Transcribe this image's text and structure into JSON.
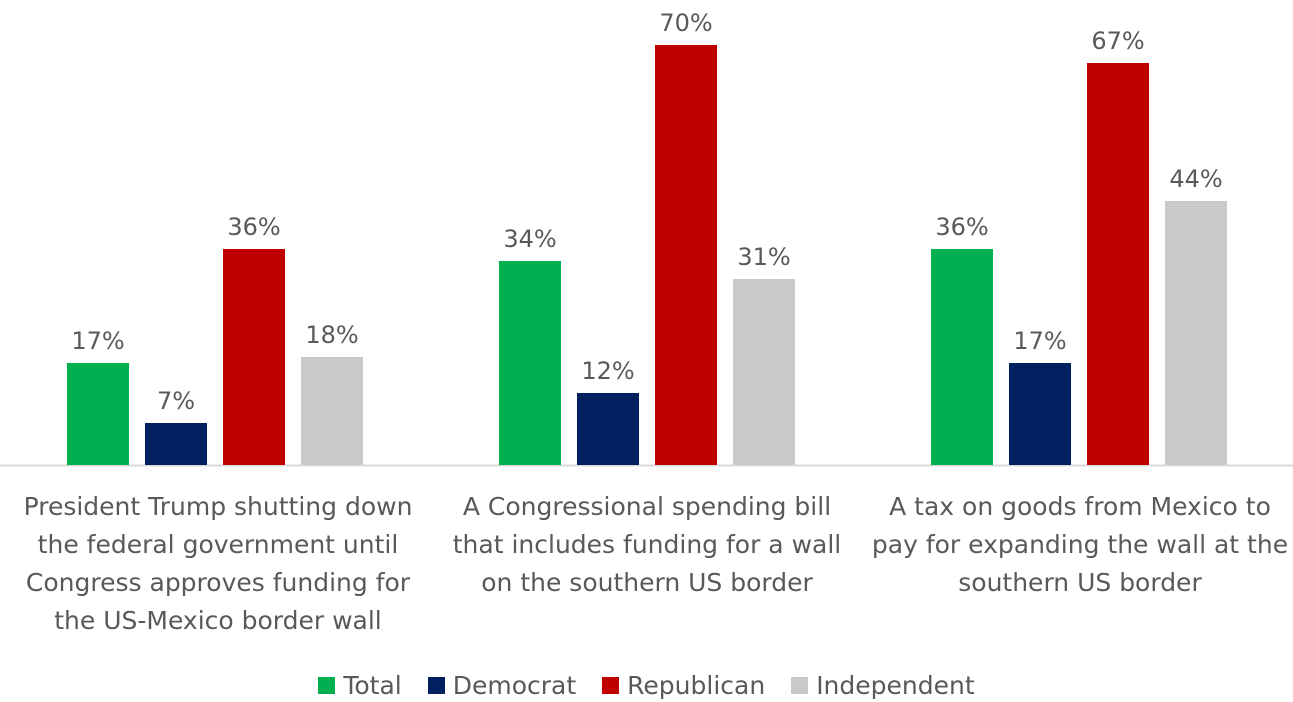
{
  "chart_data": {
    "type": "bar",
    "categories": [
      "President Trump shutting down the federal government until Congress approves funding for the US-Mexico border wall",
      "A Congressional spending bill that includes funding for a wall on the southern US border",
      "A tax on goods from Mexico to pay for expanding the wall at the southern US border"
    ],
    "series": [
      {
        "name": "Total",
        "color": "#00b050",
        "values": [
          17,
          34,
          36
        ],
        "labels": [
          "17%",
          "34%",
          "36%"
        ]
      },
      {
        "name": "Democrat",
        "color": "#002060",
        "values": [
          7,
          12,
          17
        ],
        "labels": [
          "7%",
          "12%",
          "17%"
        ]
      },
      {
        "name": "Republican",
        "color": "#c00000",
        "values": [
          36,
          70,
          67
        ],
        "labels": [
          "36%",
          "70%",
          "67%"
        ]
      },
      {
        "name": "Independent",
        "color": "#c9c9c9",
        "values": [
          18,
          31,
          44
        ],
        "labels": [
          "18%",
          "31%",
          "44%"
        ]
      }
    ],
    "title": "",
    "xlabel": "",
    "ylabel": "",
    "ylim": [
      0,
      70
    ],
    "grid": false,
    "legend_position": "bottom"
  }
}
